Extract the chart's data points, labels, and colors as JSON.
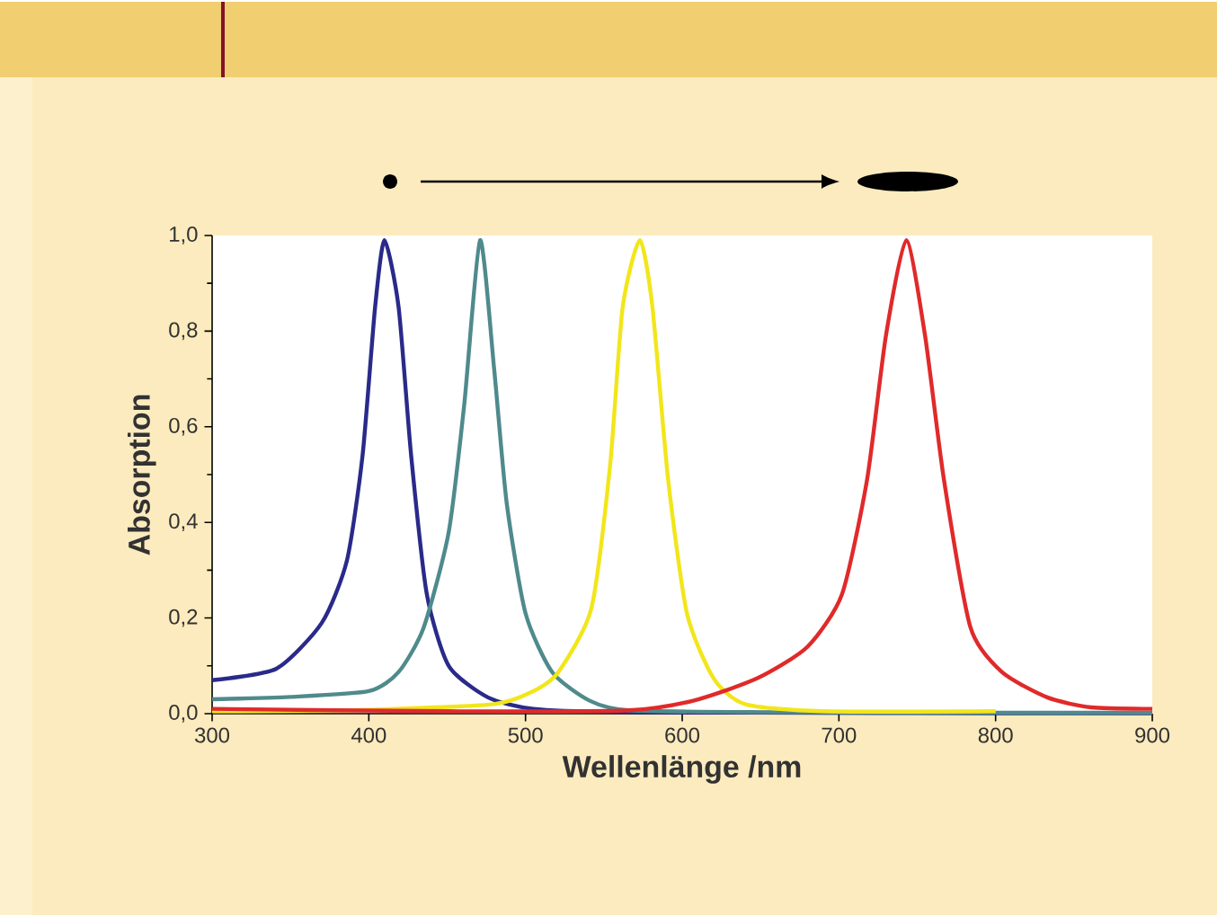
{
  "chart_data": {
    "type": "line",
    "xlabel": "Wellenlänge /nm",
    "ylabel": "Absorption",
    "xlim": [
      300,
      900
    ],
    "xticks": [
      300,
      400,
      500,
      600,
      700,
      800,
      900
    ],
    "ylim": [
      0,
      1
    ],
    "yticks": [
      {
        "value": 0,
        "label": "0,0"
      },
      {
        "value": 0.2,
        "label": "0,2"
      },
      {
        "value": 0.4,
        "label": "0,4"
      },
      {
        "value": 0.6,
        "label": "0,6"
      },
      {
        "value": 0.8,
        "label": "0,8"
      },
      {
        "value": 1,
        "label": "1,0"
      }
    ],
    "grid": false,
    "marker": "none",
    "line_style": "solid",
    "series": [
      {
        "color": "#2a2a8a",
        "x": [
          300,
          341,
          370,
          386,
          396,
          404,
          410,
          419,
          427,
          437,
          451,
          476,
          505,
          560,
          650,
          800,
          900
        ],
        "values": [
          0.07,
          0.094,
          0.19,
          0.32,
          0.54,
          0.85,
          0.99,
          0.85,
          0.54,
          0.25,
          0.1,
          0.034,
          0.01,
          0.003,
          0.002,
          0.001,
          0.001
        ]
      },
      {
        "color": "#4f8a8c",
        "x": [
          300,
          350,
          400,
          419,
          435,
          451,
          461,
          471,
          480,
          488,
          500,
          517,
          541,
          566,
          650,
          800,
          900
        ],
        "values": [
          0.03,
          0.035,
          0.047,
          0.087,
          0.18,
          0.38,
          0.65,
          0.99,
          0.72,
          0.44,
          0.21,
          0.087,
          0.027,
          0.007,
          0.003,
          0.002,
          0.002
        ]
      },
      {
        "color": "#f2e61a",
        "x": [
          300,
          400,
          480,
          505,
          521,
          542,
          554,
          562,
          573,
          581,
          591,
          603,
          620,
          640,
          689,
          800
        ],
        "values": [
          0.005,
          0.008,
          0.02,
          0.047,
          0.087,
          0.22,
          0.52,
          0.85,
          0.99,
          0.85,
          0.49,
          0.21,
          0.074,
          0.02,
          0.005,
          0.005
        ]
      },
      {
        "color": "#e02a2a",
        "x": [
          300,
          450,
          566,
          607,
          648,
          680,
          702,
          718,
          730,
          743,
          755,
          767,
          784,
          804,
          833,
          861,
          900
        ],
        "values": [
          0.01,
          0.005,
          0.007,
          0.027,
          0.074,
          0.14,
          0.25,
          0.49,
          0.79,
          0.99,
          0.79,
          0.49,
          0.18,
          0.087,
          0.034,
          0.013,
          0.01
        ]
      }
    ]
  }
}
